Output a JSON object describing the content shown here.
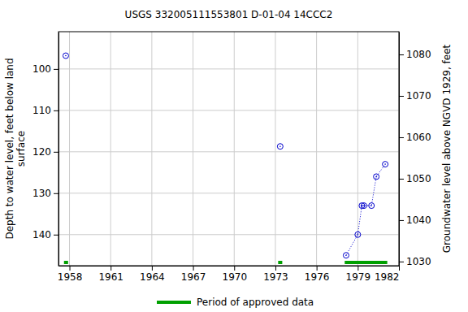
{
  "chart_data": {
    "type": "scatter",
    "title": "USGS 332005111553801 D-01-04 14CCC2",
    "y_label": [
      "Depth to water level, feet below land",
      "surface"
    ],
    "y2_label": "Groundwater level above NGVD 1929, feet",
    "x": [
      1957.73,
      null,
      1973.35,
      null,
      1978.15,
      1979.0,
      1979.3,
      1979.45,
      1980.0,
      1980.35,
      1981.0
    ],
    "series": [
      {
        "color": "#0000cc",
        "marker": "circle",
        "line_style": "dotted",
        "values": [
          96.8,
          null,
          118.7,
          null,
          145,
          140,
          133,
          133,
          133,
          126,
          123
        ]
      }
    ],
    "xlim": [
      1957.2,
      1982
    ],
    "xticks": [
      1958,
      1961,
      1964,
      1967,
      1970,
      1973,
      1976,
      1979,
      1982
    ],
    "ylim": [
      147.5,
      91
    ],
    "yticks": [
      100,
      110,
      120,
      130,
      140
    ],
    "y2lim": [
      1029,
      1085.5
    ],
    "y2ticks": [
      1030,
      1040,
      1050,
      1060,
      1070,
      1080
    ],
    "grid": true,
    "approved_label": "Period of approved data",
    "approved_color": "#00a000",
    "approved_periods": [
      [
        1957.6,
        1957.9
      ],
      [
        1973.2,
        1973.5
      ],
      [
        1978.05,
        1981.15
      ]
    ]
  }
}
